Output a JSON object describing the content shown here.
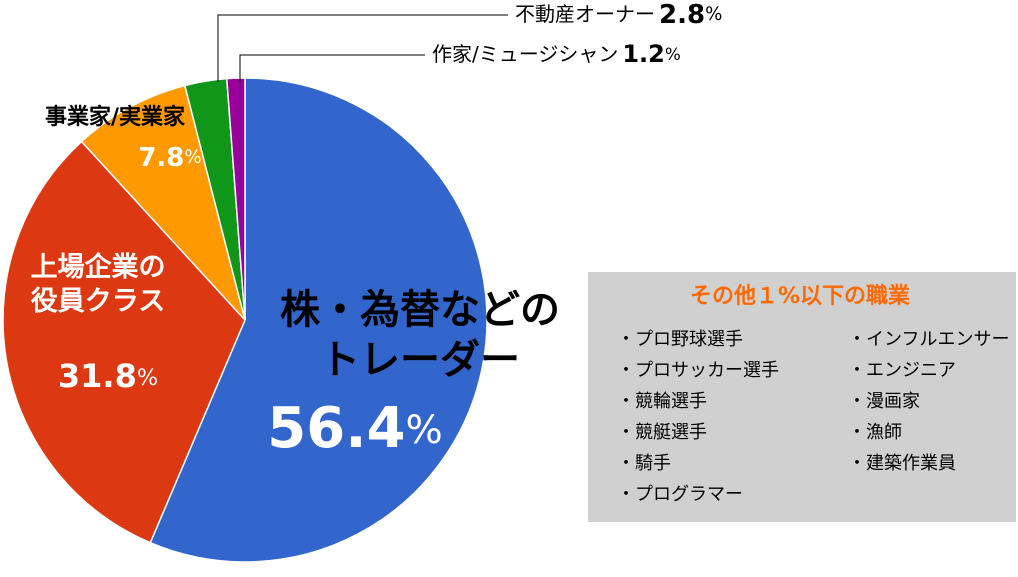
{
  "chart_data": {
    "type": "pie",
    "categories": [
      "株・為替などの\nトレーダー",
      "上場企業の\n役員クラス",
      "事業家/実業家",
      "不動産オーナー",
      "作家/ミュージシャン"
    ],
    "values": [
      56.4,
      31.8,
      7.8,
      2.8,
      1.2
    ],
    "value_labels": [
      "56.4%",
      "31.8%",
      "7.8%",
      "2.8%",
      "1.2%"
    ],
    "colors": [
      "#3366cc",
      "#dc3912",
      "#ff9900",
      "#109618",
      "#990099"
    ]
  },
  "other_box": {
    "title": "その他１%以下の職業",
    "items": [
      "・プロ野球選手",
      "・プロサッカー選手",
      "・競輪選手",
      "・競艇選手",
      "・騎手",
      "・プログラマー",
      "・インフルエンサー",
      "・エンジニア",
      "・漫画家",
      "・漁師",
      "・建築作業員"
    ]
  }
}
